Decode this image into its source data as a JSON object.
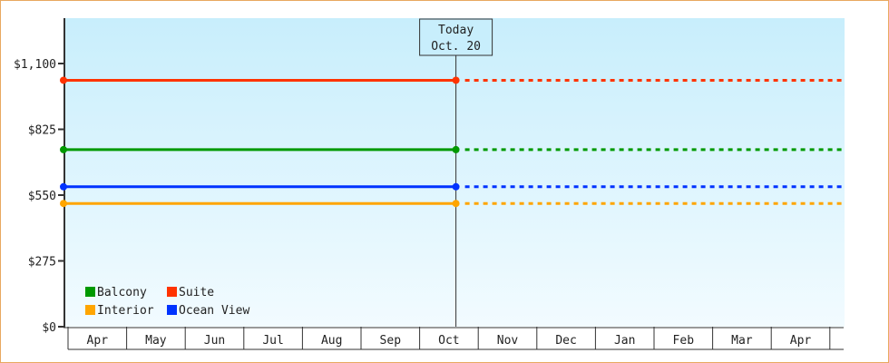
{
  "chart_data": {
    "type": "line",
    "title": "",
    "xlabel": "",
    "ylabel": "",
    "categories": [
      "Apr",
      "May",
      "Jun",
      "Jul",
      "Aug",
      "Sep",
      "Oct",
      "Nov",
      "Dec",
      "Jan",
      "Feb",
      "Mar",
      "Apr"
    ],
    "ylim": [
      0,
      1100
    ],
    "yticks": [
      0,
      275,
      550,
      825,
      1100
    ],
    "ytick_labels": [
      "$0",
      "$275",
      "$550",
      "$825",
      "$1,100"
    ],
    "grid": false,
    "legend_position": "bottom-left",
    "today_marker": {
      "line1": "Today",
      "line2": "Oct. 20",
      "category": "Oct"
    },
    "series": [
      {
        "name": "Balcony",
        "color": "#009900",
        "value": 740
      },
      {
        "name": "Suite",
        "color": "#ff3300",
        "value": 1030
      },
      {
        "name": "Interior",
        "color": "#ffa500",
        "value": 515
      },
      {
        "name": "Ocean View",
        "color": "#0033ff",
        "value": 585
      }
    ],
    "background_gradient": [
      "#c8eefc",
      "#f2fbff"
    ]
  }
}
